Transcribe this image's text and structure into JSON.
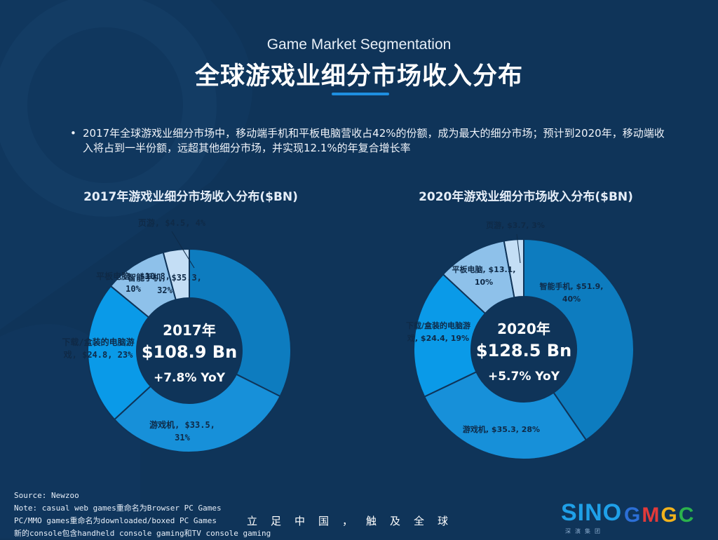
{
  "header": {
    "subtitle_en": "Game Market Segmentation",
    "title_zh": "全球游戏业细分市场收入分布"
  },
  "bullet": {
    "dot": "•",
    "text": "2017年全球游戏业细分市场中，移动端手机和平板电脑营收占42%的份额，成为最大的细分市场；预计到2020年，移动端收入将占到一半份额，远超其他细分市场，并实现12.1%的年复合增长率"
  },
  "colors": {
    "background": "#0f3459",
    "accent": "#1e8fe0",
    "segment_colors": [
      "#0d7cbf",
      "#1790d9",
      "#0a9ae8",
      "#8ec1ea",
      "#c4def5"
    ]
  },
  "chart_data": [
    {
      "type": "pie",
      "title": "2017年游戏业细分市场收入分布($BN)",
      "center": {
        "year": "2017年",
        "total": "$108.9 Bn",
        "growth": "+7.8% YoY"
      },
      "series": [
        {
          "name": "智能手机",
          "value": 35.3,
          "percent": 32,
          "label_line1": "智能手机, $35.3,",
          "label_line2": "32%"
        },
        {
          "name": "游戏机",
          "value": 33.5,
          "percent": 31,
          "label_line1": "游戏机, $33.5,",
          "label_line2": "31%"
        },
        {
          "name": "下载/盒装的电脑游戏",
          "value": 24.8,
          "percent": 23,
          "label_line1": "下载/盒装的电脑游",
          "label_line2": "戏, $24.8, 23%"
        },
        {
          "name": "平板电脑",
          "value": 10.8,
          "percent": 10,
          "label_line1": "平板电脑, $10.8,",
          "label_line2": "10%"
        },
        {
          "name": "页游",
          "value": 4.5,
          "percent": 4,
          "label_line1": "页游, $4.5, 4%",
          "label_line2": ""
        }
      ]
    },
    {
      "type": "pie",
      "title": "2020年游戏业细分市场收入分布($BN)",
      "center": {
        "year": "2020年",
        "total": "$128.5 Bn",
        "growth": "+5.7% YoY"
      },
      "series": [
        {
          "name": "智能手机",
          "value": 51.9,
          "percent": 40,
          "label_line1": "智能手机, $51.9,",
          "label_line2": "40%"
        },
        {
          "name": "游戏机",
          "value": 35.3,
          "percent": 28,
          "label_line1": "游戏机, $35.3, 28%",
          "label_line2": ""
        },
        {
          "name": "下载/盒装的电脑游戏",
          "value": 24.4,
          "percent": 19,
          "label_line1": "下载/盒装的电脑游",
          "label_line2": "戏, $24.4, 19%"
        },
        {
          "name": "平板电脑",
          "value": 13.1,
          "percent": 10,
          "label_line1": "平板电脑, $13.1,",
          "label_line2": "10%"
        },
        {
          "name": "页游",
          "value": 3.7,
          "percent": 3,
          "label_line1": "页游, $3.7, 3%",
          "label_line2": ""
        }
      ]
    }
  ],
  "footnote": {
    "line1": "Source: Newzoo",
    "line2": "Note: casual web games重命名为Browser PC Games",
    "line3": "PC/MMO games重命名为downloaded/boxed PC Games",
    "line4": "新的console包含handheld console gaming和TV console gaming"
  },
  "slogan": "立足中国，触及全球",
  "logos": {
    "sino": "SINO",
    "sino_sub": "深演集团",
    "gmgc": "GMGC"
  }
}
